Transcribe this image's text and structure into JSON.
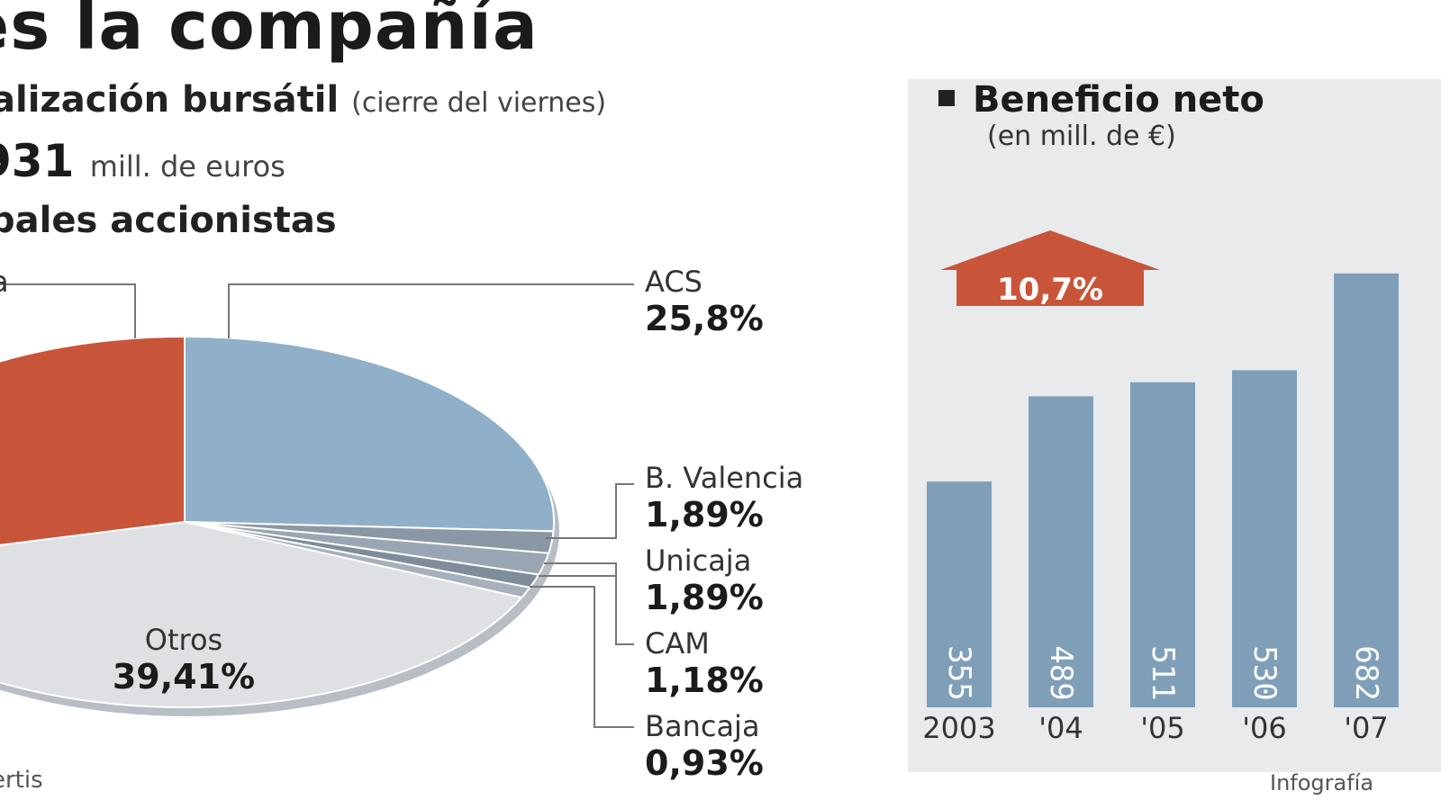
{
  "header": {
    "title": "es la compañía",
    "cap_label": "alización bursátil",
    "cap_note": "(cierre del viernes)",
    "cap_value": "931",
    "cap_unit": "mill. de euros",
    "shareholders_title": "pales accionistas",
    "source": "ertis",
    "credit": "Infografía"
  },
  "colors": {
    "acs": "#8fb0c8",
    "rust": "#c8553a",
    "otros": "#dfe0e3",
    "small": "#8a97a5",
    "bar": "#7f9fb9",
    "panel": "#e9eaec",
    "arrow": "#c8553a"
  },
  "chart_data": [
    {
      "type": "pie",
      "slices": [
        {
          "name": "ACS",
          "pct_label": "25,8%",
          "value": 25.8
        },
        {
          "name": "B. Valencia",
          "pct_label": "1,89%",
          "value": 1.89
        },
        {
          "name": "Unicaja",
          "pct_label": "1,89%",
          "value": 1.89
        },
        {
          "name": "CAM",
          "pct_label": "1,18%",
          "value": 1.18
        },
        {
          "name": "Bancaja",
          "pct_label": "0,93%",
          "value": 0.93
        },
        {
          "name": "Otros",
          "pct_label": "39,41%",
          "value": 39.41
        },
        {
          "name": "a",
          "pct_label": "",
          "value": 28.9
        }
      ]
    },
    {
      "type": "bar",
      "title": "Beneficio neto",
      "subtitle": "(en mill. de €)",
      "categories": [
        "2003",
        "'04",
        "'05",
        "'06",
        "'07"
      ],
      "values": [
        355,
        489,
        511,
        530,
        682
      ],
      "value_labels": [
        "355",
        "489",
        "511",
        "530",
        "682"
      ],
      "ylim": [
        0,
        730
      ],
      "annotation": "10,7%"
    }
  ]
}
